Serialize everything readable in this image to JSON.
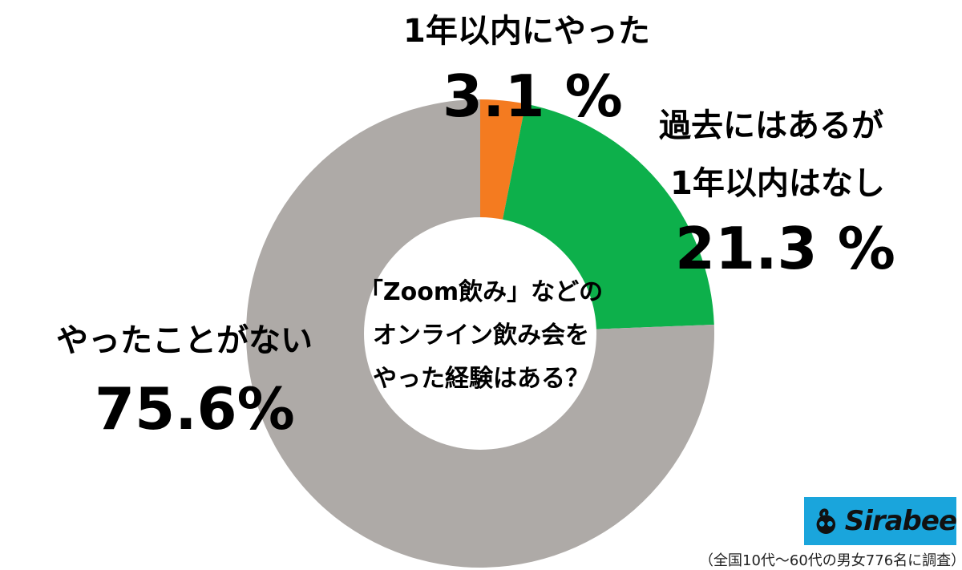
{
  "chart_data": {
    "type": "pie",
    "donut": true,
    "categories": [
      "1年以内にやった",
      "過去にはあるが1年以内はなし",
      "やったことがない"
    ],
    "values": [
      3.1,
      21.3,
      75.6
    ],
    "colors": [
      "#f47b20",
      "#0db04b",
      "#aeaaa7"
    ],
    "center_text": [
      "「Zoom飲み」などの",
      "オンライン飲み会を",
      "やった経験はある？"
    ]
  },
  "labels": {
    "slice1_name": "1年以内にやった",
    "slice1_pct": "3.1 %",
    "slice2_name_line1": "過去にはあるが",
    "slice2_name_line2": "1年以内はなし",
    "slice2_pct": "21.3 %",
    "slice3_name": "やったことがない",
    "slice3_pct": "75.6%"
  },
  "logo": {
    "text": "Sirabee",
    "color": "#1aa5dc"
  },
  "footnote": "（全国10代～60代の男女776名に調査）"
}
